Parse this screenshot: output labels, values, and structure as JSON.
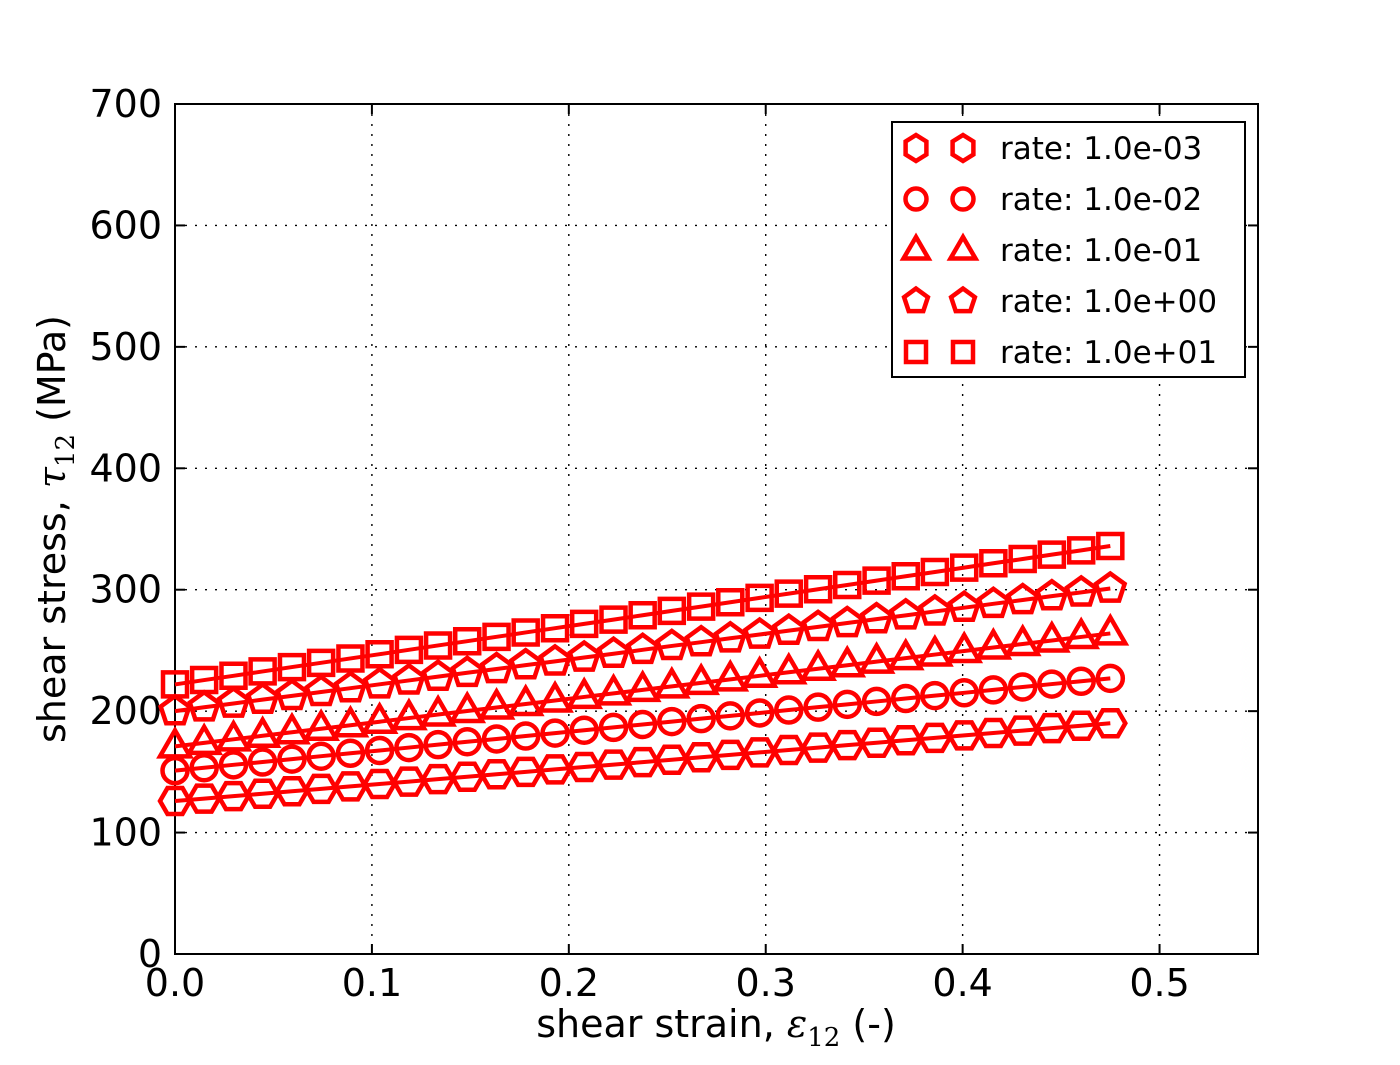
{
  "colors": {
    "series": "#ff0000",
    "text": "#000000",
    "grid": "#000000",
    "axes_border": "#000000",
    "background": "#ffffff",
    "legend_background": "#ffffff"
  },
  "labels": {
    "y": {
      "prefix": "shear stress, ",
      "symbol": "τ",
      "subscript": "12",
      "suffix": " (MPa)"
    },
    "x": {
      "prefix": "shear strain, ",
      "symbol": "ε",
      "subscript": "12",
      "suffix": " (-)"
    }
  },
  "chart_data": {
    "type": "line",
    "title": "",
    "xlabel": "shear strain, ε12 (-)",
    "ylabel": "shear stress, τ12 (MPa)",
    "xlim": [
      0,
      0.55
    ],
    "ylim": [
      0,
      700
    ],
    "x_tick_values": [
      0,
      0.1,
      0.2,
      0.3,
      0.4,
      0.5
    ],
    "x_tick_labels": [
      "0.0",
      "0.1",
      "0.2",
      "0.3",
      "0.4",
      "0.5"
    ],
    "y_tick_values": [
      0,
      100,
      200,
      300,
      400,
      500,
      600,
      700
    ],
    "y_tick_labels": [
      "0",
      "100",
      "200",
      "300",
      "400",
      "500",
      "600",
      "700"
    ],
    "grid": "dotted",
    "legend_position": "upper right",
    "marker_fill": "none",
    "x": [
      0,
      0.0148,
      0.0297,
      0.0445,
      0.0594,
      0.0742,
      0.0891,
      0.1039,
      0.1188,
      0.1336,
      0.1484,
      0.1633,
      0.1781,
      0.193,
      0.2078,
      0.2227,
      0.2375,
      0.2523,
      0.2672,
      0.282,
      0.2969,
      0.3117,
      0.3266,
      0.3414,
      0.3563,
      0.3711,
      0.3859,
      0.4008,
      0.4156,
      0.4305,
      0.4453,
      0.4602,
      0.475
    ],
    "series": [
      {
        "name": "rate: 1.0e-03",
        "marker": "hexagon",
        "color": "#ff0000",
        "values": [
          126,
          128,
          130,
          132,
          134,
          136,
          138,
          140,
          142,
          144,
          146,
          148,
          150,
          152,
          154,
          156,
          158,
          160,
          162,
          164,
          166,
          168,
          170,
          172,
          174,
          176,
          178,
          180,
          182,
          184,
          186,
          188,
          190
        ]
      },
      {
        "name": "rate: 1.0e-02",
        "marker": "circle",
        "color": "#ff0000",
        "values": [
          151,
          153.4,
          155.8,
          158.1,
          160.5,
          162.9,
          165.3,
          167.6,
          170,
          172.4,
          174.8,
          177.1,
          179.5,
          181.9,
          184.3,
          186.6,
          189,
          191.4,
          193.8,
          196.1,
          198.5,
          200.9,
          203.3,
          205.6,
          208,
          210.4,
          212.8,
          215.1,
          217.5,
          219.9,
          222.3,
          224.6,
          227
        ]
      },
      {
        "name": "rate: 1.0e-01",
        "marker": "triangle",
        "color": "#ff0000",
        "values": [
          171,
          173.9,
          176.8,
          179.7,
          182.6,
          185.5,
          188.4,
          191.3,
          194.3,
          197.2,
          200.1,
          203,
          205.9,
          208.8,
          211.7,
          214.6,
          217.5,
          220.4,
          223.3,
          226.2,
          229.1,
          232,
          234.9,
          237.8,
          240.8,
          243.7,
          246.6,
          249.5,
          252.4,
          255.3,
          258.2,
          261.1,
          264
        ]
      },
      {
        "name": "rate: 1.0e+00",
        "marker": "pentagon",
        "color": "#ff0000",
        "values": [
          200,
          203.2,
          206.3,
          209.5,
          212.6,
          215.8,
          218.9,
          222.1,
          225.3,
          228.4,
          231.6,
          234.7,
          237.9,
          241,
          244.2,
          247.3,
          250.5,
          253.7,
          256.8,
          260,
          263.1,
          266.3,
          269.4,
          272.6,
          275.8,
          278.9,
          282.1,
          285.2,
          288.4,
          291.5,
          294.7,
          297.8,
          301
        ]
      },
      {
        "name": "rate: 1.0e+01",
        "marker": "square",
        "color": "#ff0000",
        "values": [
          222,
          225.6,
          229.1,
          232.7,
          236.3,
          239.8,
          243.4,
          246.9,
          250.5,
          254.1,
          257.6,
          261.2,
          264.8,
          268.3,
          271.9,
          275.4,
          279,
          282.6,
          286.1,
          289.7,
          293.3,
          296.8,
          300.4,
          303.9,
          307.5,
          311.1,
          314.6,
          318.2,
          321.8,
          325.3,
          328.9,
          332.4,
          336
        ]
      }
    ]
  },
  "legend": {
    "entries": [
      {
        "marker": "hexagon",
        "label": "rate: 1.0e-03"
      },
      {
        "marker": "circle",
        "label": "rate: 1.0e-02"
      },
      {
        "marker": "triangle",
        "label": "rate: 1.0e-01"
      },
      {
        "marker": "pentagon",
        "label": "rate: 1.0e+00"
      },
      {
        "marker": "square",
        "label": "rate: 1.0e+01"
      }
    ]
  }
}
